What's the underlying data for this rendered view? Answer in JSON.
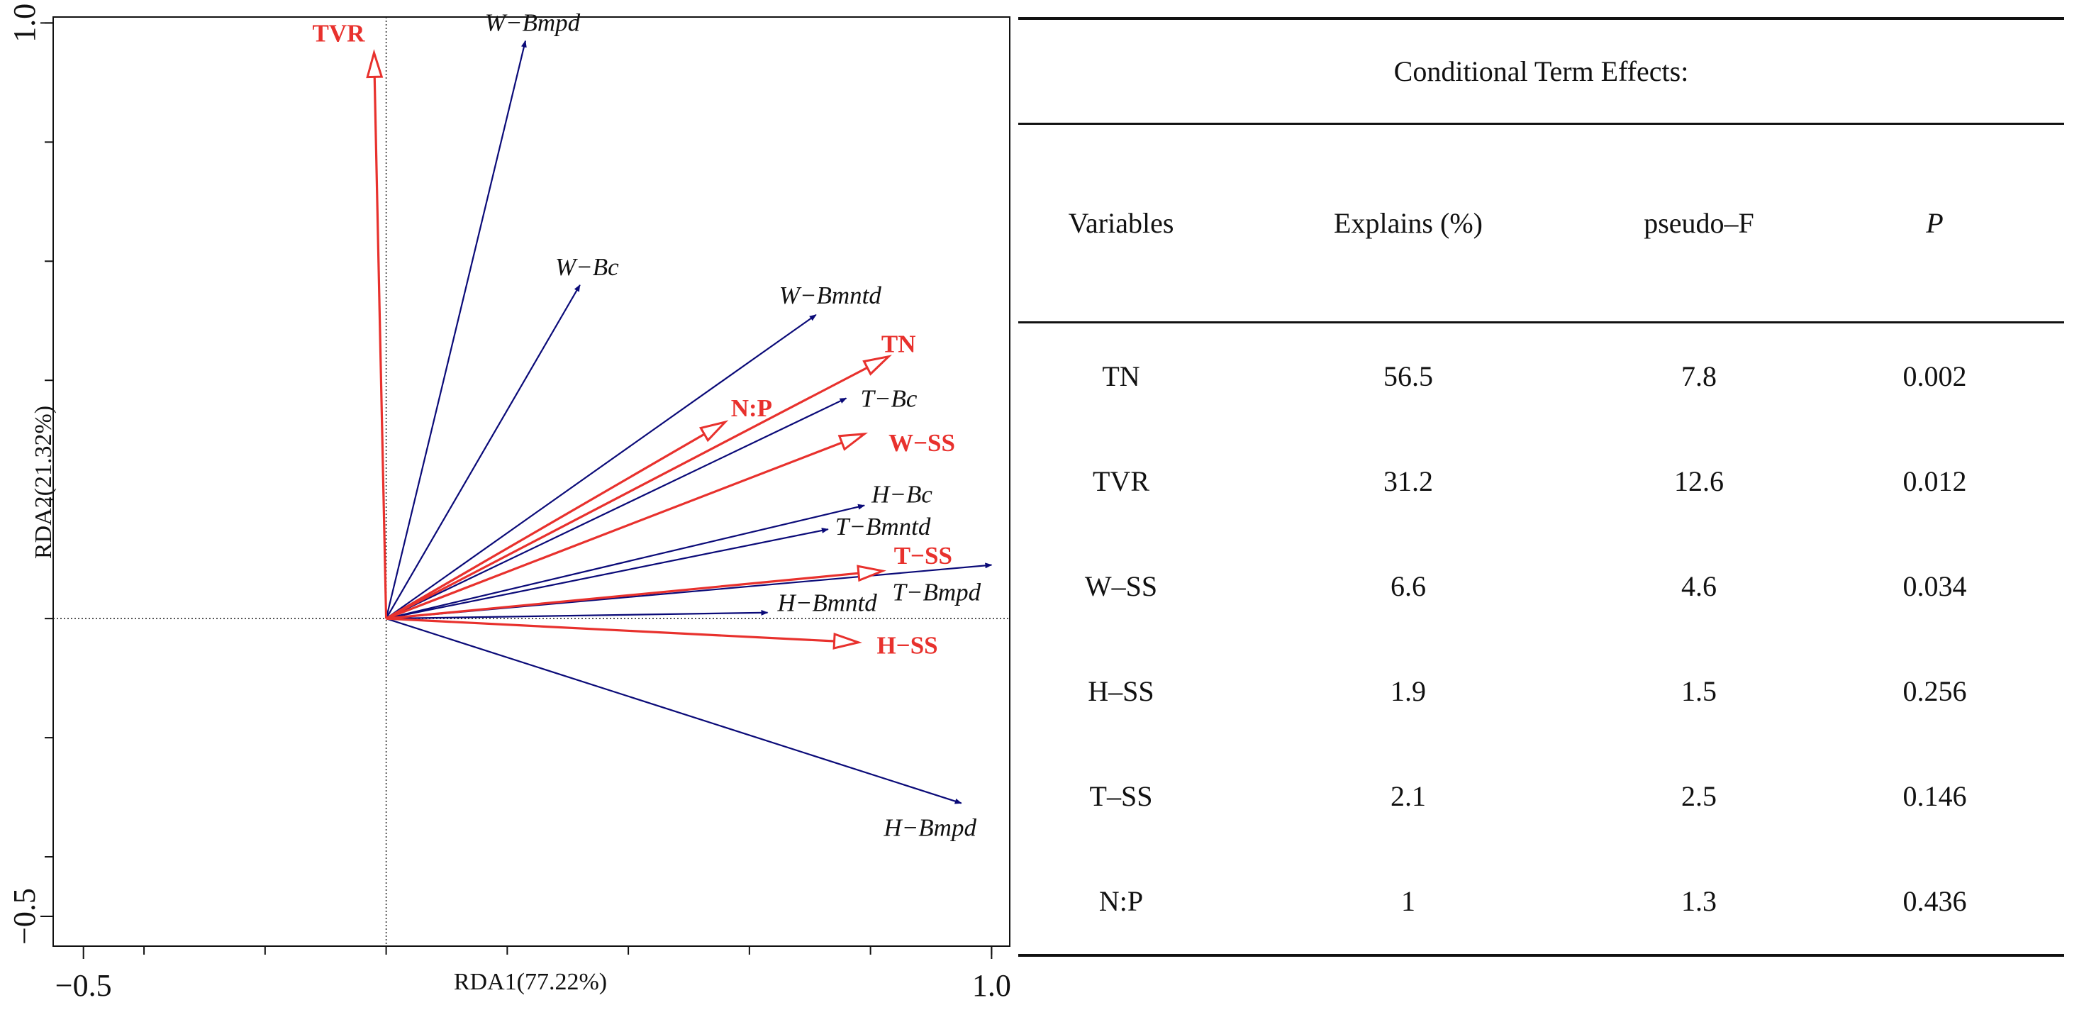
{
  "chart_data": {
    "type": "biplot",
    "xlabel": "RDA1(77.22%)",
    "ylabel": "RDA2(21.32%)",
    "xlim": [
      -0.55,
      1.03
    ],
    "ylim": [
      -0.55,
      1.01
    ],
    "x_ticks_labeled": [
      {
        "value": -0.5,
        "label": "−0.5"
      },
      {
        "value": 1.0,
        "label": "1.0"
      }
    ],
    "y_ticks_labeled": [
      {
        "value": -0.5,
        "label": "−0.5"
      },
      {
        "value": 1.0,
        "label": "1.0"
      }
    ],
    "tick_step": 0.2,
    "reference_lines": {
      "x": 0,
      "y": 0,
      "style": "dotted"
    },
    "response_color": "#0a0a78",
    "explanatory_color": "#e8312d",
    "response_arrows": [
      {
        "name": "W−Bmpd",
        "x": 0.23,
        "y": 0.97
      },
      {
        "name": "W−Bc",
        "x": 0.32,
        "y": 0.56
      },
      {
        "name": "W−Bmntd",
        "x": 0.71,
        "y": 0.51
      },
      {
        "name": "T−Bc",
        "x": 0.76,
        "y": 0.37
      },
      {
        "name": "H−Bc",
        "x": 0.79,
        "y": 0.19
      },
      {
        "name": "T−Bmntd",
        "x": 0.73,
        "y": 0.15
      },
      {
        "name": "T−Bmpd",
        "x": 1.0,
        "y": 0.09
      },
      {
        "name": "H−Bmntd",
        "x": 0.63,
        "y": 0.01
      },
      {
        "name": "H−Bmpd",
        "x": 0.95,
        "y": -0.31
      }
    ],
    "explanatory_arrows": [
      {
        "name": "TVR",
        "x": -0.02,
        "y": 0.95
      },
      {
        "name": "TN",
        "x": 0.83,
        "y": 0.44
      },
      {
        "name": "N:P",
        "x": 0.56,
        "y": 0.33
      },
      {
        "name": "W−SS",
        "x": 0.79,
        "y": 0.31
      },
      {
        "name": "T−SS",
        "x": 0.82,
        "y": 0.08
      },
      {
        "name": "H−SS",
        "x": 0.78,
        "y": -0.04
      }
    ]
  },
  "table": {
    "title": "Conditional Term Effects:",
    "headers": [
      "Variables",
      "Explains (%)",
      "pseudo–F",
      "P"
    ],
    "rows": [
      [
        "TN",
        "56.5",
        "7.8",
        "0.002"
      ],
      [
        "TVR",
        "31.2",
        "12.6",
        "0.012"
      ],
      [
        "W–SS",
        "6.6",
        "4.6",
        "0.034"
      ],
      [
        "H–SS",
        "1.9",
        "1.5",
        "0.256"
      ],
      [
        "T–SS",
        "2.1",
        "2.5",
        "0.146"
      ],
      [
        "N:P",
        "1",
        "1.3",
        "0.436"
      ]
    ]
  }
}
